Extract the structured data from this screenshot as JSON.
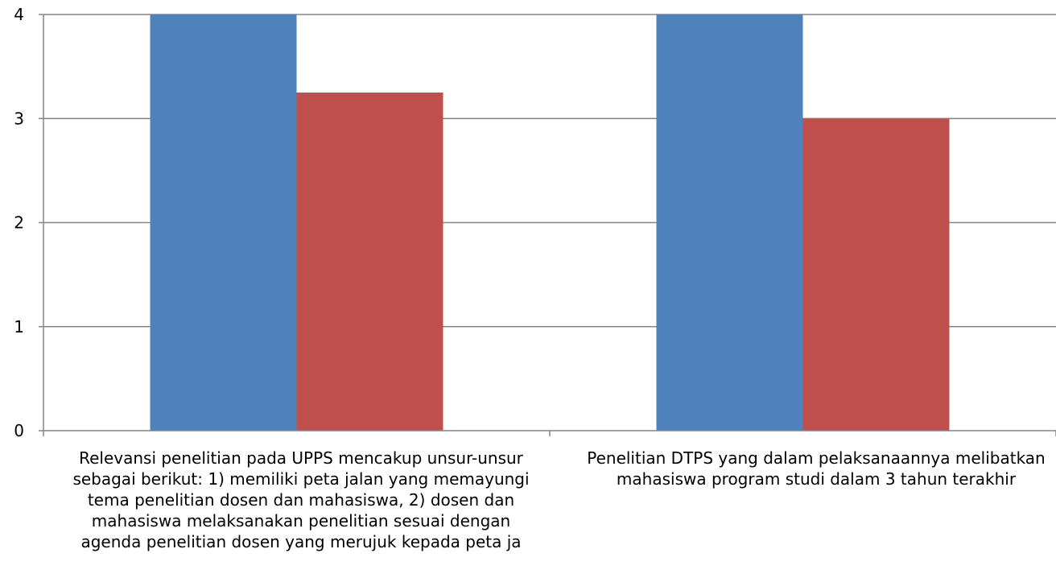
{
  "chart_data": {
    "type": "bar",
    "categories": [
      "Relevansi penelitian pada UPPS mencakup unsur-unsur\nsebagai berikut: 1) memiliki peta jalan yang memayungi\ntema penelitian dosen dan mahasiswa, 2) dosen dan\nmahasiswa melaksanakan penelitian sesuai dengan\nagenda penelitian dosen yang merujuk kepada peta ja",
      "Penelitian DTPS yang dalam pelaksanaannya melibatkan\nmahasiswa program studi dalam 3 tahun terakhir"
    ],
    "series": [
      {
        "values": [
          4,
          4
        ],
        "color": "#4F81BD"
      },
      {
        "values": [
          3.25,
          3
        ],
        "color": "#C0504D"
      }
    ],
    "ylim": [
      0,
      4
    ],
    "yticks": [
      "0",
      "1",
      "2",
      "3",
      "4"
    ],
    "grid": true
  }
}
